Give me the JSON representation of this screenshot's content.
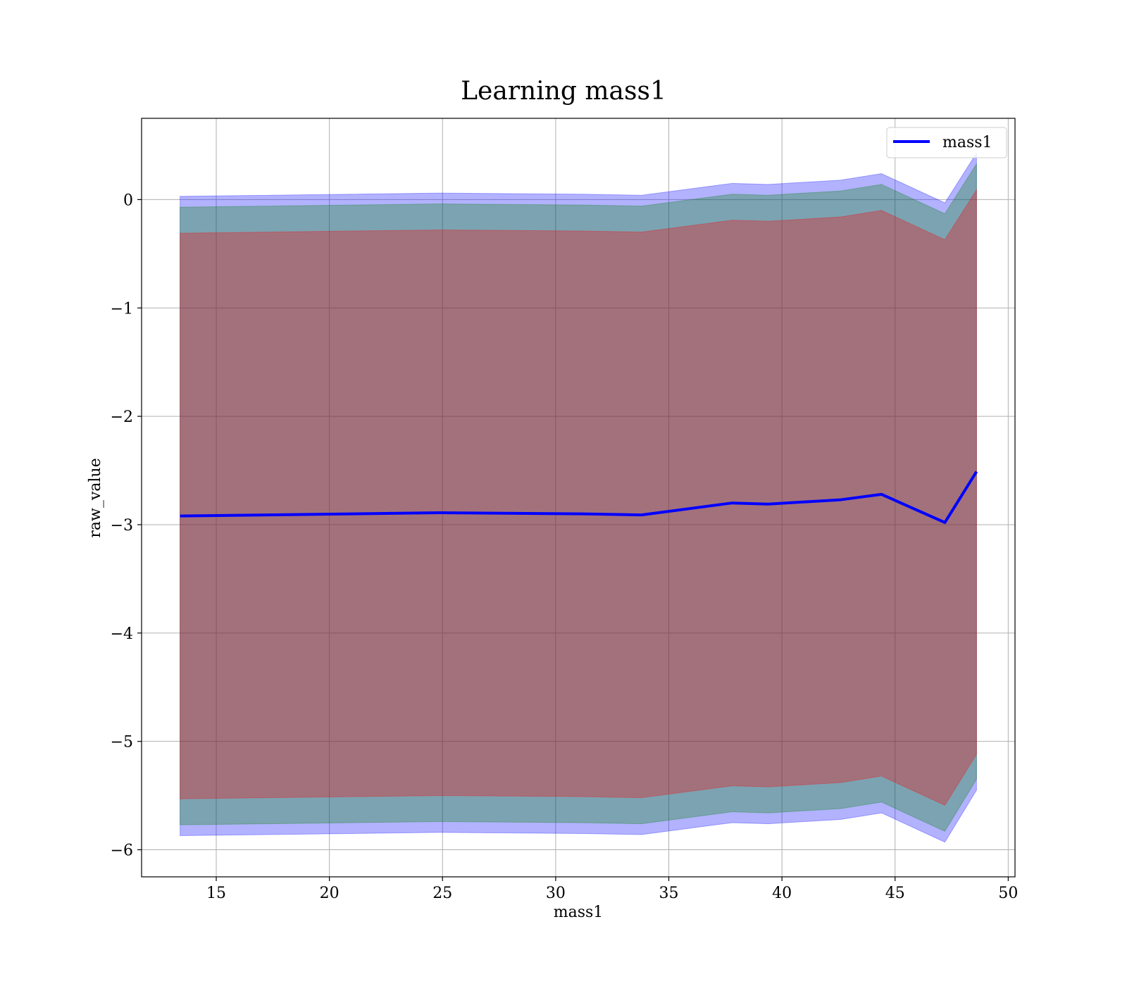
{
  "chart_data": {
    "type": "line",
    "title": "Learning mass1",
    "xlabel": "mass1",
    "ylabel": "raw_value",
    "xlim": [
      11.7,
      50.3
    ],
    "ylim": [
      -6.25,
      0.75
    ],
    "xticks": [
      15,
      20,
      25,
      30,
      35,
      40,
      45,
      50
    ],
    "yticks": [
      0,
      -1,
      -2,
      -3,
      -4,
      -5,
      -6
    ],
    "grid": true,
    "legend_position": "top-right",
    "x": [
      13.4,
      24.9,
      31.2,
      33.8,
      37.8,
      39.4,
      42.6,
      44.4,
      47.2,
      48.6
    ],
    "series": [
      {
        "name": "mass1",
        "color": "#0000ff",
        "values": [
          -2.92,
          -2.89,
          -2.9,
          -2.91,
          -2.8,
          -2.81,
          -2.77,
          -2.72,
          -2.98,
          -2.51
        ]
      }
    ],
    "bands": [
      {
        "color": "#0000ff",
        "opacity": 0.3,
        "upper": [
          0.03,
          0.06,
          0.05,
          0.04,
          0.15,
          0.14,
          0.18,
          0.24,
          -0.03,
          0.43
        ],
        "lower": [
          -5.87,
          -5.84,
          -5.85,
          -5.86,
          -5.75,
          -5.76,
          -5.72,
          -5.66,
          -5.93,
          -5.45
        ]
      },
      {
        "color": "#008000",
        "opacity": 0.3,
        "upper": [
          -0.07,
          -0.04,
          -0.05,
          -0.06,
          0.05,
          0.04,
          0.08,
          0.14,
          -0.13,
          0.33
        ],
        "lower": [
          -5.77,
          -5.74,
          -5.75,
          -5.76,
          -5.65,
          -5.66,
          -5.62,
          -5.56,
          -5.83,
          -5.35
        ]
      },
      {
        "color": "#ff0000",
        "opacity": 0.3,
        "upper": [
          -0.31,
          -0.28,
          -0.29,
          -0.3,
          -0.19,
          -0.2,
          -0.16,
          -0.1,
          -0.37,
          0.09
        ],
        "lower": [
          -5.53,
          -5.5,
          -5.51,
          -5.52,
          -5.41,
          -5.42,
          -5.38,
          -5.32,
          -5.59,
          -5.12
        ]
      }
    ]
  }
}
